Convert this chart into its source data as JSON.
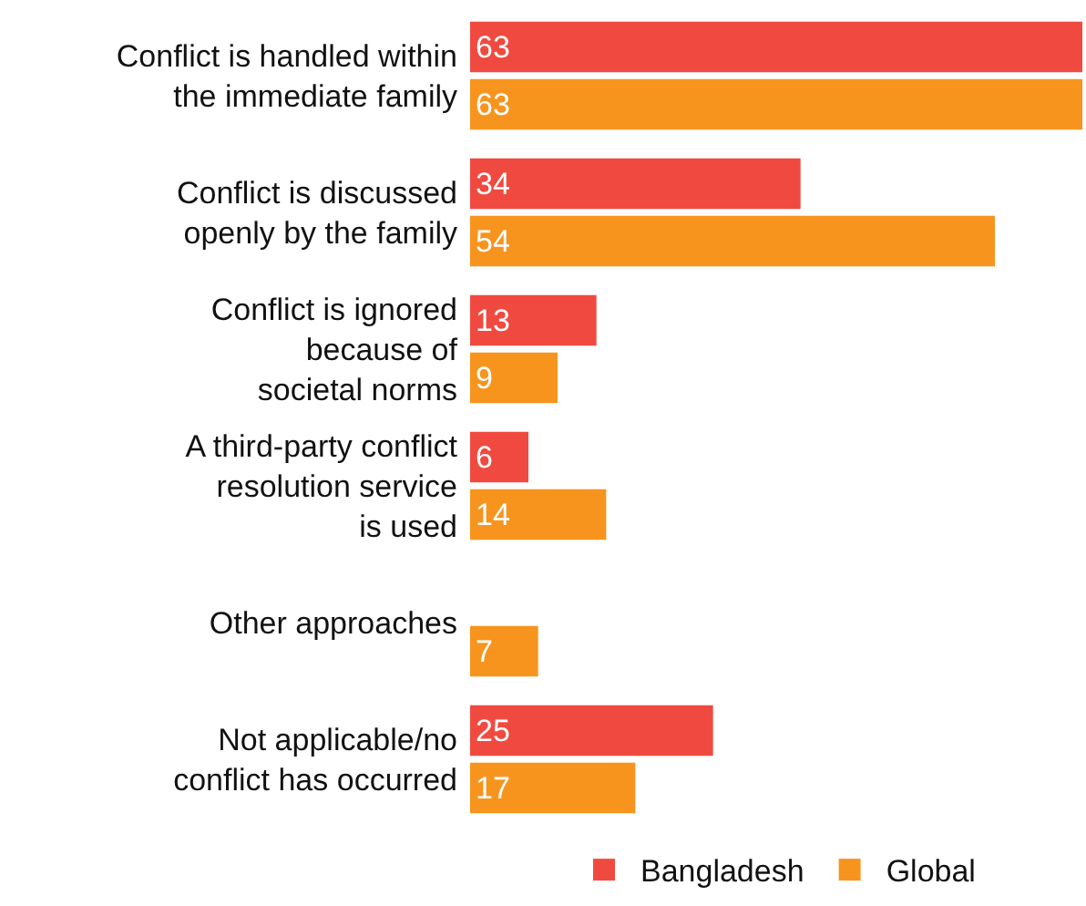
{
  "chart_data": {
    "type": "bar",
    "orientation": "horizontal",
    "categories": [
      "Conflict is handled within\nthe immediate family",
      "Conflict is discussed\nopenly by the family",
      "Conflict is ignored\nbecause of\nsocietal norms",
      "A third-party conflict\nresolution service\nis used",
      "Other approaches",
      "Not applicable/no\nconflict has occurred"
    ],
    "series": [
      {
        "name": "Bangladesh",
        "color": "#f04a40",
        "values": [
          63,
          34,
          13,
          6,
          null,
          25
        ]
      },
      {
        "name": "Global",
        "color": "#f7941e",
        "values": [
          63,
          54,
          9,
          14,
          7,
          17
        ]
      }
    ],
    "data_labels": true,
    "legend": "bottom"
  }
}
